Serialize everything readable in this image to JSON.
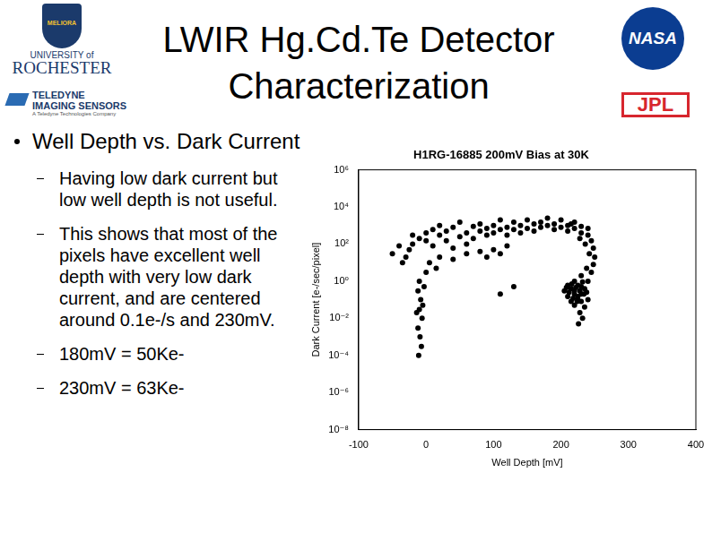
{
  "header": {
    "title_lines": [
      "LWIR Hg.Cd.Te Detector",
      "Characterization"
    ]
  },
  "logos": {
    "rochester": [
      "MELIORA",
      "UNIVERSITY of",
      "ROCHESTER"
    ],
    "teledyne": [
      "TELEDYNE",
      "IMAGING SENSORS",
      "A Teledyne Technologies Company"
    ],
    "nasa": "NASA",
    "jpl": "JPL"
  },
  "bullets": {
    "main": "Well Depth vs. Dark Current",
    "sub": [
      "Having low dark current but low well depth is not useful.",
      "This shows that most of the pixels have excellent well depth with very low dark current, and are centered around 0.1e-/s and 230mV.",
      "180mV = 50Ke-",
      "230mV = 63Ke-"
    ]
  },
  "chart_data": {
    "type": "scatter",
    "title": "H1RG-16885 200mV Bias at 30K",
    "x_label": "Well Depth [mV]",
    "y_label": "Dark Current [e-/sec/pixel]",
    "log": "y",
    "grid": false,
    "color": "#000000",
    "marker": "circle",
    "xlim": [
      -100,
      400
    ],
    "xticks": [
      -100,
      0,
      100,
      200,
      300,
      400
    ],
    "ylim": [
      1e-08,
      1000000.0
    ],
    "yticks": [
      {
        "value": 1e-08,
        "label": "10⁻⁸"
      },
      {
        "value": 1e-06,
        "label": "10⁻⁶"
      },
      {
        "value": 0.0001,
        "label": "10⁻⁴"
      },
      {
        "value": 0.01,
        "label": "10⁻²"
      },
      {
        "value": 1,
        "label": "10⁰"
      },
      {
        "value": 100,
        "label": "10²"
      },
      {
        "value": 10000,
        "label": "10⁴"
      },
      {
        "value": 1000000,
        "label": "10⁶"
      }
    ],
    "x": [
      -30,
      -25,
      -20,
      -20,
      -10,
      0,
      0,
      10,
      10,
      20,
      20,
      30,
      30,
      40,
      40,
      50,
      50,
      60,
      60,
      70,
      70,
      80,
      80,
      90,
      90,
      100,
      100,
      110,
      110,
      120,
      120,
      130,
      130,
      140,
      140,
      150,
      150,
      160,
      160,
      170,
      170,
      180,
      180,
      190,
      190,
      200,
      200,
      210,
      210,
      220,
      220,
      230,
      230,
      240,
      240,
      245,
      248,
      250,
      248,
      245,
      240,
      235,
      230,
      225,
      220,
      215,
      210,
      205,
      210,
      220,
      225,
      230,
      235,
      240,
      228,
      232,
      226,
      220,
      215,
      230,
      220,
      230,
      238,
      242,
      236,
      228,
      215,
      225,
      20,
      40,
      60,
      80,
      100,
      120,
      90,
      110,
      -10,
      -12,
      -8,
      -10,
      -6,
      -12,
      -9,
      -7,
      -11,
      -5,
      -14,
      -3,
      0,
      5,
      15,
      -50,
      -40,
      -35,
      110,
      130,
      212,
      218,
      222,
      228,
      234,
      216,
      224,
      232,
      208,
      238
    ],
    "values": [
      20,
      50,
      100,
      300,
      200,
      400,
      150,
      600,
      80,
      300,
      1000,
      150,
      500,
      60,
      800,
      250,
      1500,
      400,
      100,
      900,
      200,
      500,
      1200,
      300,
      700,
      400,
      1000,
      600,
      2000,
      800,
      300,
      1500,
      600,
      1000,
      400,
      2000,
      700,
      1200,
      500,
      1500,
      800,
      1000,
      2500,
      1200,
      600,
      800,
      2000,
      1000,
      500,
      700,
      1500,
      400,
      900,
      300,
      700,
      150,
      60,
      20,
      8,
      3,
      1,
      0.4,
      0.2,
      0.1,
      0.05,
      0.08,
      0.15,
      0.3,
      0.6,
      0.3,
      0.6,
      0.08,
      0.04,
      0.1,
      0.02,
      0.01,
      0.005,
      0.2,
      0.4,
      0.5,
      1,
      2,
      5,
      30,
      100,
      200,
      1200,
      0.15,
      20,
      15,
      30,
      40,
      50,
      80,
      20,
      30,
      1,
      0.3,
      0.1,
      0.03,
      0.01,
      0.003,
      0.001,
      0.0003,
      0.0001,
      0.05,
      0.02,
      0.5,
      3,
      10,
      5,
      30,
      80,
      10,
      0.2,
      0.5,
      0.25,
      0.12,
      0.45,
      0.3,
      0.2,
      0.7,
      0.08,
      0.9,
      0.45,
      0.25
    ]
  }
}
